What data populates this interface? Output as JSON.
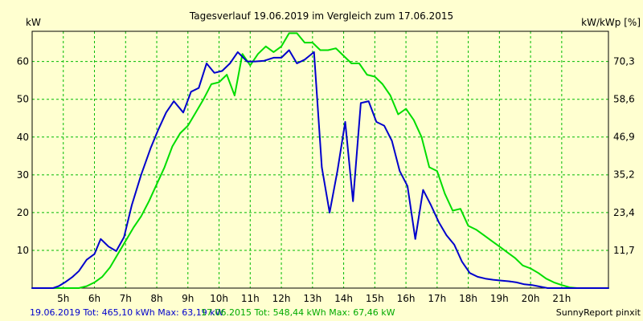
{
  "chart_data": {
    "type": "line",
    "title": "Tagesverlauf 19.06.2019 im Vergleich zum 17.06.2015",
    "ylabel_left": "kW",
    "ylabel_right": "kW/kWp [%]",
    "x_domain": [
      4.0,
      22.5
    ],
    "ylim": [
      0,
      68
    ],
    "grid": true,
    "x_ticks": [
      {
        "value": 5,
        "label": "5h"
      },
      {
        "value": 6,
        "label": "6h"
      },
      {
        "value": 7,
        "label": "7h"
      },
      {
        "value": 8,
        "label": "8h"
      },
      {
        "value": 9,
        "label": "9h"
      },
      {
        "value": 10,
        "label": "10h"
      },
      {
        "value": 11,
        "label": "11h"
      },
      {
        "value": 12,
        "label": "12h"
      },
      {
        "value": 13,
        "label": "13h"
      },
      {
        "value": 14,
        "label": "14h"
      },
      {
        "value": 15,
        "label": "15h"
      },
      {
        "value": 16,
        "label": "16h"
      },
      {
        "value": 17,
        "label": "17h"
      },
      {
        "value": 18,
        "label": "18h"
      },
      {
        "value": 19,
        "label": "19h"
      },
      {
        "value": 20,
        "label": "20h"
      },
      {
        "value": 21,
        "label": "21h"
      }
    ],
    "y_ticks_left": [
      {
        "value": 10,
        "label": "10"
      },
      {
        "value": 20,
        "label": "20"
      },
      {
        "value": 30,
        "label": "30"
      },
      {
        "value": 40,
        "label": "40"
      },
      {
        "value": 50,
        "label": "50"
      },
      {
        "value": 60,
        "label": "60"
      }
    ],
    "y_ticks_right": [
      {
        "value": 11.7,
        "label": "11,7"
      },
      {
        "value": 23.4,
        "label": "23,4"
      },
      {
        "value": 35.2,
        "label": "35,2"
      },
      {
        "value": 46.9,
        "label": "46,9"
      },
      {
        "value": 58.6,
        "label": "58,6"
      },
      {
        "value": 70.3,
        "label": "70,3"
      }
    ],
    "right_axis_scale": 1.172,
    "series": [
      {
        "name": "19.06.2019",
        "color": "#0000cc",
        "points": [
          [
            4.0,
            0
          ],
          [
            4.67,
            0
          ],
          [
            4.85,
            0.5
          ],
          [
            5.05,
            1.5
          ],
          [
            5.3,
            3
          ],
          [
            5.5,
            4.5
          ],
          [
            5.75,
            7.5
          ],
          [
            6.0,
            9
          ],
          [
            6.2,
            13
          ],
          [
            6.45,
            11
          ],
          [
            6.7,
            9.8
          ],
          [
            6.95,
            13.5
          ],
          [
            7.2,
            22
          ],
          [
            7.5,
            30
          ],
          [
            7.8,
            37
          ],
          [
            8.05,
            42
          ],
          [
            8.3,
            46.5
          ],
          [
            8.55,
            49.5
          ],
          [
            8.85,
            46.5
          ],
          [
            9.1,
            52
          ],
          [
            9.35,
            53
          ],
          [
            9.6,
            59.5
          ],
          [
            9.85,
            57
          ],
          [
            10.1,
            57.5
          ],
          [
            10.35,
            59.5
          ],
          [
            10.6,
            62.5
          ],
          [
            10.9,
            60
          ],
          [
            11.15,
            60
          ],
          [
            11.45,
            60.2
          ],
          [
            11.75,
            61
          ],
          [
            12.0,
            61
          ],
          [
            12.25,
            63
          ],
          [
            12.5,
            59.5
          ],
          [
            12.75,
            60.5
          ],
          [
            13.05,
            62.5
          ],
          [
            13.3,
            32
          ],
          [
            13.55,
            20
          ],
          [
            13.8,
            31
          ],
          [
            14.05,
            44
          ],
          [
            14.3,
            23
          ],
          [
            14.55,
            49
          ],
          [
            14.8,
            49.5
          ],
          [
            15.05,
            44
          ],
          [
            15.3,
            43
          ],
          [
            15.55,
            39
          ],
          [
            15.8,
            31
          ],
          [
            16.05,
            27
          ],
          [
            16.3,
            13
          ],
          [
            16.55,
            26
          ],
          [
            16.8,
            22
          ],
          [
            17.05,
            17.5
          ],
          [
            17.3,
            14
          ],
          [
            17.55,
            11.5
          ],
          [
            17.8,
            7
          ],
          [
            18.05,
            4
          ],
          [
            18.3,
            3
          ],
          [
            18.55,
            2.5
          ],
          [
            18.8,
            2.2
          ],
          [
            19.05,
            2
          ],
          [
            19.3,
            1.8
          ],
          [
            19.55,
            1.5
          ],
          [
            19.8,
            1
          ],
          [
            20.05,
            0.8
          ],
          [
            20.3,
            0.4
          ],
          [
            20.55,
            0
          ],
          [
            22.5,
            0
          ]
        ]
      },
      {
        "name": "17.06.2015",
        "color": "#00dd00",
        "points": [
          [
            4.0,
            0
          ],
          [
            5.5,
            0
          ],
          [
            5.75,
            0.5
          ],
          [
            6.0,
            1.5
          ],
          [
            6.25,
            3
          ],
          [
            6.5,
            5.5
          ],
          [
            6.75,
            9
          ],
          [
            7.0,
            12.5
          ],
          [
            7.25,
            16
          ],
          [
            7.5,
            19
          ],
          [
            7.75,
            23
          ],
          [
            8.0,
            27.5
          ],
          [
            8.25,
            32
          ],
          [
            8.5,
            37.5
          ],
          [
            8.75,
            41
          ],
          [
            9.0,
            43
          ],
          [
            9.25,
            46.5
          ],
          [
            9.5,
            50
          ],
          [
            9.75,
            54
          ],
          [
            10.0,
            54.5
          ],
          [
            10.25,
            56.5
          ],
          [
            10.5,
            51
          ],
          [
            10.75,
            62
          ],
          [
            11.0,
            59
          ],
          [
            11.25,
            62
          ],
          [
            11.5,
            64
          ],
          [
            11.75,
            62.5
          ],
          [
            12.0,
            64
          ],
          [
            12.25,
            67.5
          ],
          [
            12.5,
            67.5
          ],
          [
            12.75,
            65
          ],
          [
            13.0,
            65
          ],
          [
            13.25,
            63
          ],
          [
            13.5,
            63
          ],
          [
            13.75,
            63.5
          ],
          [
            14.0,
            61.5
          ],
          [
            14.25,
            59.5
          ],
          [
            14.5,
            59.5
          ],
          [
            14.75,
            56.5
          ],
          [
            15.0,
            56
          ],
          [
            15.25,
            54
          ],
          [
            15.5,
            51
          ],
          [
            15.75,
            46
          ],
          [
            16.0,
            47.5
          ],
          [
            16.25,
            44.5
          ],
          [
            16.5,
            40
          ],
          [
            16.75,
            32
          ],
          [
            17.0,
            31
          ],
          [
            17.25,
            25
          ],
          [
            17.5,
            20.5
          ],
          [
            17.75,
            21
          ],
          [
            18.0,
            16.5
          ],
          [
            18.25,
            15.5
          ],
          [
            18.5,
            14
          ],
          [
            18.75,
            12.5
          ],
          [
            19.0,
            11
          ],
          [
            19.25,
            9.5
          ],
          [
            19.5,
            8
          ],
          [
            19.75,
            6
          ],
          [
            20.0,
            5.2
          ],
          [
            20.25,
            4
          ],
          [
            20.5,
            2.5
          ],
          [
            20.75,
            1.5
          ],
          [
            21.0,
            0.8
          ],
          [
            21.25,
            0.2
          ],
          [
            21.5,
            0
          ],
          [
            22.5,
            0
          ]
        ]
      }
    ]
  },
  "footer": {
    "series1_summary": "19.06.2019 Tot: 465,10 kWh Max: 63,19 kW",
    "series2_summary": "17.06.2015 Tot: 548,44 kWh Max: 67,46 kW",
    "credit": "SunnyReport pinxit"
  },
  "colors": {
    "background": "#ffffd0",
    "grid": "#00bb00",
    "series1": "#0000cc",
    "series2": "#00dd00"
  }
}
